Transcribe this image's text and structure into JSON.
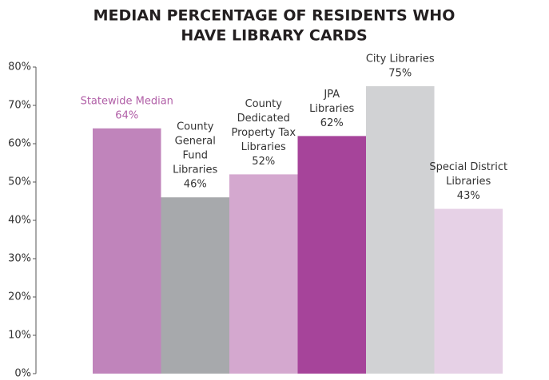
{
  "chart_data": {
    "type": "bar",
    "title": [
      "MEDIAN PERCENTAGE OF RESIDENTS WHO",
      "HAVE LIBRARY CARDS"
    ],
    "categories": [
      [
        "Statewide Median"
      ],
      [
        "County",
        "General",
        "Fund",
        "Libraries"
      ],
      [
        "County",
        "Dedicated",
        "Property Tax",
        "Libraries"
      ],
      [
        "JPA",
        "Libraries"
      ],
      [
        "City Libraries"
      ],
      [
        "Special District",
        "Libraries"
      ]
    ],
    "values": [
      64,
      46,
      52,
      62,
      75,
      43
    ],
    "value_labels": [
      "64%",
      "46%",
      "52%",
      "62%",
      "75%",
      "43%"
    ],
    "colors": [
      "#c084bb",
      "#a7a9ac",
      "#d4a8cf",
      "#a6449a",
      "#d1d2d4",
      "#e6d1e6"
    ],
    "label_colors": [
      "#b15fa7",
      "#333333",
      "#333333",
      "#333333",
      "#333333",
      "#333333"
    ],
    "ylim": [
      0,
      80
    ],
    "yticks": [
      {
        "value": 0,
        "label": "0%"
      },
      {
        "value": 10,
        "label": "10%"
      },
      {
        "value": 20,
        "label": "20%"
      },
      {
        "value": 30,
        "label": "30%"
      },
      {
        "value": 40,
        "label": "40%"
      },
      {
        "value": 50,
        "label": "50%"
      },
      {
        "value": 60,
        "label": "60%"
      },
      {
        "value": 70,
        "label": "70%"
      },
      {
        "value": 80,
        "label": "80%"
      }
    ],
    "grid": false
  }
}
